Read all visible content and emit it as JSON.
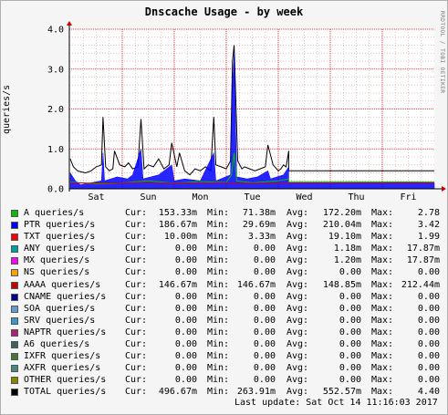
{
  "title": "Dnscache Usage - by week",
  "vendor": "RRDTOOL / TOBI OETIKER",
  "colors": {
    "grid_major": "#ff0000",
    "grid_minor": "#dcaaaa",
    "background": "#ffffff"
  },
  "chart_data": {
    "type": "line",
    "ylabel": "queries/s",
    "ylim": [
      0,
      4
    ],
    "yticks": [
      "0.0",
      "1.0",
      "2.0",
      "3.0",
      "4.0"
    ],
    "xticks": [
      "Sat",
      "Sun",
      "Mon",
      "Tue",
      "Wed",
      "Thu",
      "Fri"
    ],
    "x_days": [
      0,
      7
    ],
    "grid": true,
    "series": [
      {
        "name": "TOTAL queries/s",
        "color": "#000000",
        "x": [
          0,
          0.06,
          0.14,
          0.22,
          0.3,
          0.4,
          0.5,
          0.6,
          0.63,
          0.68,
          0.75,
          0.82,
          0.85,
          0.95,
          1.05,
          1.12,
          1.2,
          1.3,
          1.36,
          1.42,
          1.5,
          1.6,
          1.7,
          1.8,
          1.9,
          1.95,
          2.05,
          2.1,
          2.2,
          2.3,
          2.4,
          2.5,
          2.6,
          2.7,
          2.76,
          2.8,
          2.9,
          3.0,
          3.08,
          3.12,
          3.15,
          3.22,
          3.3,
          3.35,
          3.45,
          3.55,
          3.65,
          3.75,
          3.8,
          3.9,
          4.0,
          4.05,
          4.1,
          4.15,
          4.2,
          4.2,
          7.0
        ],
        "values": [
          0.75,
          0.55,
          0.45,
          0.42,
          0.4,
          0.45,
          0.55,
          0.6,
          1.8,
          0.55,
          0.45,
          0.5,
          0.95,
          0.6,
          0.55,
          0.65,
          0.5,
          0.55,
          1.75,
          0.5,
          0.6,
          0.55,
          0.75,
          0.5,
          0.6,
          1.15,
          0.55,
          0.9,
          0.45,
          0.35,
          0.5,
          0.45,
          0.55,
          0.45,
          1.8,
          0.6,
          0.55,
          0.5,
          0.7,
          3.2,
          3.6,
          0.7,
          0.5,
          0.55,
          0.5,
          0.45,
          0.5,
          0.55,
          1.1,
          0.6,
          0.45,
          0.5,
          0.6,
          0.55,
          0.95,
          0.45,
          0.45
        ]
      },
      {
        "name": "PTR queries/s",
        "color": "#0000ff",
        "fill": true,
        "x": [
          0,
          0.1,
          0.2,
          0.4,
          0.6,
          0.63,
          0.66,
          0.9,
          1.1,
          1.2,
          1.36,
          1.4,
          1.7,
          1.95,
          2.0,
          2.2,
          2.5,
          2.76,
          2.8,
          3.08,
          3.12,
          3.15,
          3.2,
          3.4,
          3.6,
          3.8,
          3.85,
          4.1,
          4.2,
          4.2,
          7.0
        ],
        "values": [
          0.4,
          0.2,
          0.1,
          0.15,
          0.2,
          0.9,
          0.2,
          0.3,
          0.25,
          0.35,
          1.0,
          0.25,
          0.35,
          0.6,
          0.2,
          0.25,
          0.2,
          0.9,
          0.2,
          0.35,
          2.6,
          3.4,
          0.3,
          0.25,
          0.3,
          0.45,
          0.25,
          0.35,
          0.55,
          0.15,
          0.15
        ]
      },
      {
        "name": "A queries/s",
        "color": "#00c000",
        "x": [
          0,
          0.5,
          1.0,
          1.5,
          2.0,
          2.5,
          3.0,
          3.1,
          3.15,
          3.2,
          3.5,
          4.0,
          4.2,
          4.2,
          7.0
        ],
        "values": [
          0.17,
          0.12,
          0.15,
          0.2,
          0.14,
          0.18,
          0.16,
          0.35,
          0.9,
          0.2,
          0.15,
          0.2,
          0.25,
          0.18,
          0.17
        ]
      },
      {
        "name": "AAAA queries/s",
        "color": "#cc0000",
        "x": [
          0,
          0.5,
          1.0,
          1.5,
          2.0,
          2.5,
          3.0,
          3.5,
          4.0,
          4.2,
          7.0
        ],
        "values": [
          0.15,
          0.14,
          0.15,
          0.16,
          0.14,
          0.15,
          0.15,
          0.14,
          0.15,
          0.15,
          0.15
        ]
      }
    ]
  },
  "legend_labels": {
    "cur": "Cur:",
    "min": "Min:",
    "avg": "Avg:",
    "max": "Max:"
  },
  "legend": [
    {
      "name": "A queries/s",
      "color": "#00c000",
      "cur": "153.33m",
      "min": "71.38m",
      "avg": "172.20m",
      "max": "2.78"
    },
    {
      "name": "PTR queries/s",
      "color": "#0000ff",
      "cur": "186.67m",
      "min": "29.69m",
      "avg": "210.04m",
      "max": "3.42"
    },
    {
      "name": "TXT queries/s",
      "color": "#ff0000",
      "cur": "10.00m",
      "min": "3.33m",
      "avg": "19.10m",
      "max": "1.99"
    },
    {
      "name": "ANY queries/s",
      "color": "#00a0a0",
      "cur": "0.00",
      "min": "0.00",
      "avg": "1.18m",
      "max": "17.87m"
    },
    {
      "name": "MX queries/s",
      "color": "#ff00ff",
      "cur": "0.00",
      "min": "0.00",
      "avg": "1.20m",
      "max": "17.87m"
    },
    {
      "name": "NS queries/s",
      "color": "#ffa000",
      "cur": "0.00",
      "min": "0.00",
      "avg": "0.00",
      "max": "0.00"
    },
    {
      "name": "AAAA queries/s",
      "color": "#cc0000",
      "cur": "146.67m",
      "min": "146.67m",
      "avg": "148.85m",
      "max": "212.44m"
    },
    {
      "name": "CNAME queries/s",
      "color": "#0000a0",
      "cur": "0.00",
      "min": "0.00",
      "avg": "0.00",
      "max": "0.00"
    },
    {
      "name": "SOA queries/s",
      "color": "#6699cc",
      "cur": "0.00",
      "min": "0.00",
      "avg": "0.00",
      "max": "0.00"
    },
    {
      "name": "SRV queries/s",
      "color": "#3399cc",
      "cur": "0.00",
      "min": "0.00",
      "avg": "0.00",
      "max": "0.00"
    },
    {
      "name": "NAPTR queries/s",
      "color": "#aa2277",
      "cur": "0.00",
      "min": "0.00",
      "avg": "0.00",
      "max": "0.00"
    },
    {
      "name": "A6 queries/s",
      "color": "#336666",
      "cur": "0.00",
      "min": "0.00",
      "avg": "0.00",
      "max": "0.00"
    },
    {
      "name": "IXFR queries/s",
      "color": "#447733",
      "cur": "0.00",
      "min": "0.00",
      "avg": "0.00",
      "max": "0.00"
    },
    {
      "name": "AXFR queries/s",
      "color": "#448888",
      "cur": "0.00",
      "min": "0.00",
      "avg": "0.00",
      "max": "0.00"
    },
    {
      "name": "OTHER queries/s",
      "color": "#888800",
      "cur": "0.00",
      "min": "0.00",
      "avg": "0.00",
      "max": "0.00"
    },
    {
      "name": "TOTAL queries/s",
      "color": "#000000",
      "cur": "496.67m",
      "min": "263.91m",
      "avg": "552.57m",
      "max": "4.40"
    }
  ],
  "last_update": "Last update: Sat Oct 14 11:16:03 2017"
}
